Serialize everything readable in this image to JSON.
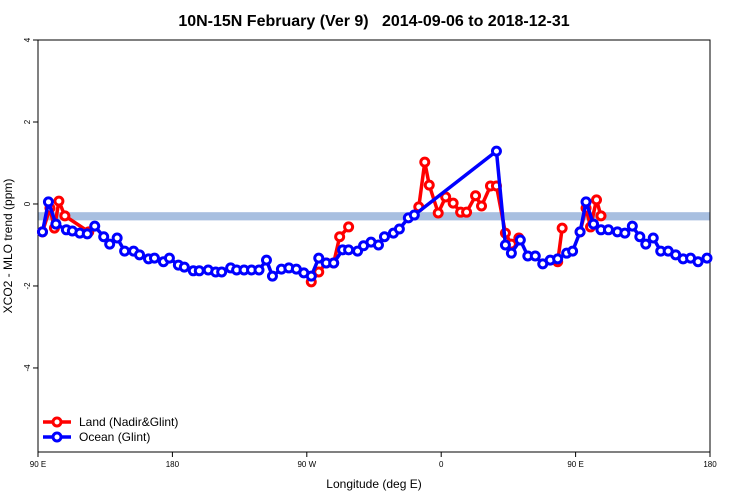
{
  "chart_data": {
    "type": "line",
    "title": "10N-15N February (Ver 9)   2014-09-06 to 2018-12-31",
    "x_label": "Longitude (deg E)",
    "y_label": "XCO2 - MLO trend (ppm)",
    "xlim": [
      90,
      540
    ],
    "ylim": [
      -6.05,
      4
    ],
    "xticks": [
      {
        "value": 90,
        "label": "90 E"
      },
      {
        "value": 180,
        "label": "180"
      },
      {
        "value": 270,
        "label": "90 W"
      },
      {
        "value": 360,
        "label": "0"
      },
      {
        "value": 450,
        "label": "90 E"
      },
      {
        "value": 540,
        "label": "180"
      }
    ],
    "yticks": [
      -4,
      -2,
      0,
      2,
      4
    ],
    "reference_band": {
      "ymin": -0.4,
      "ymax": -0.2,
      "color": "#a8bfe0"
    },
    "legend": "bottom-left",
    "series": [
      {
        "name": "Land (Nadir&Glint)",
        "color": "#ff0000",
        "x": [
          93,
          98,
          101,
          104,
          108,
          124,
          200,
          273,
          278,
          283,
          288,
          292,
          298,
          320,
          345,
          349,
          352,
          358,
          363,
          368,
          373,
          377,
          383,
          387,
          393,
          397,
          403,
          407,
          412,
          425,
          438,
          441,
          447,
          453,
          457,
          460,
          464,
          467
        ],
        "values": [
          -0.68,
          -0.1,
          -0.59,
          0.07,
          -0.29,
          -0.68,
          null,
          -1.9,
          -1.66,
          -1.44,
          -1.44,
          -0.8,
          -0.56,
          null,
          -0.07,
          1.02,
          0.46,
          -0.22,
          0.17,
          0.02,
          -0.2,
          -0.2,
          0.2,
          -0.05,
          0.44,
          0.44,
          -0.71,
          -0.98,
          -0.83,
          null,
          -1.41,
          -0.59,
          null,
          -0.68,
          -0.1,
          -0.56,
          0.1,
          -0.29
        ]
      },
      {
        "name": "Ocean (Glint)",
        "color": "#0000ff",
        "x": [
          93,
          97,
          102,
          109,
          113,
          118,
          123,
          128,
          134,
          138,
          143,
          148,
          154,
          158,
          164,
          168,
          174,
          178,
          184,
          188,
          194,
          198,
          204,
          209,
          213,
          219,
          223,
          228,
          233,
          238,
          243,
          247,
          253,
          258,
          263,
          268,
          273,
          278,
          283,
          288,
          294,
          298,
          304,
          308,
          313,
          318,
          322,
          328,
          332,
          338,
          342,
          397,
          403,
          407,
          413,
          418,
          423,
          428,
          433,
          438,
          444,
          448,
          453,
          457,
          462,
          467,
          472,
          478,
          483,
          488,
          493,
          497,
          502,
          507,
          512,
          517,
          522,
          527,
          532,
          538
        ],
        "values": [
          -0.68,
          0.05,
          -0.49,
          -0.63,
          -0.66,
          -0.71,
          -0.73,
          -0.54,
          -0.8,
          -0.98,
          -0.83,
          -1.15,
          -1.15,
          -1.24,
          -1.34,
          -1.32,
          -1.41,
          -1.32,
          -1.49,
          -1.54,
          -1.63,
          -1.63,
          -1.61,
          -1.66,
          -1.66,
          -1.56,
          -1.61,
          -1.61,
          -1.61,
          -1.61,
          -1.37,
          -1.76,
          -1.59,
          -1.56,
          -1.59,
          -1.68,
          -1.76,
          -1.32,
          -1.44,
          -1.44,
          -1.12,
          -1.12,
          -1.15,
          -1.02,
          -0.93,
          -1.0,
          -0.8,
          -0.71,
          -0.61,
          -0.34,
          -0.27,
          1.29,
          -1.0,
          -1.2,
          -0.88,
          -1.27,
          -1.27,
          -1.46,
          -1.37,
          -1.34,
          -1.2,
          -1.15,
          -0.68,
          0.05,
          -0.49,
          -0.63,
          -0.63,
          -0.68,
          -0.71,
          -0.54,
          -0.8,
          -0.98,
          -0.83,
          -1.15,
          -1.15,
          -1.24,
          -1.34,
          -1.32,
          -1.41,
          -1.32
        ]
      }
    ]
  }
}
